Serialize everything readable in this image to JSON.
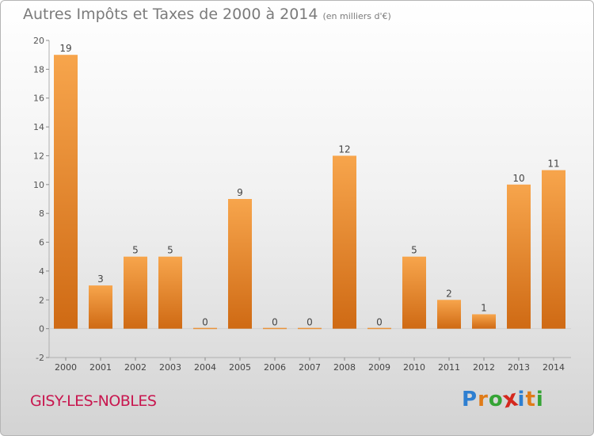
{
  "header": {
    "title": "Autres Impôts et Taxes de 2000 à 2014",
    "subtitle": "(en milliers d'€)"
  },
  "footer": {
    "commune": "GISY-LES-NOBLES",
    "brand": [
      "P",
      "r",
      "o",
      "x",
      "i",
      "t",
      "i"
    ],
    "brand_colors": [
      "#2e7fd1",
      "#e07b18",
      "#35a435",
      "#d4281e",
      "#2e7fd1",
      "#e07b18",
      "#35a435"
    ]
  },
  "chart_data": {
    "type": "bar",
    "title": "Autres Impôts et Taxes de 2000 à 2014",
    "subtitle": "(en milliers d'€)",
    "categories": [
      "2000",
      "2001",
      "2002",
      "2003",
      "2004",
      "2005",
      "2006",
      "2007",
      "2008",
      "2009",
      "2010",
      "2011",
      "2012",
      "2013",
      "2014"
    ],
    "values": [
      19,
      3,
      5,
      5,
      0,
      9,
      0,
      0,
      12,
      0,
      5,
      2,
      1,
      10,
      11
    ],
    "ylim": [
      -2,
      20
    ],
    "yticks": [
      -2,
      0,
      2,
      4,
      6,
      8,
      10,
      12,
      14,
      16,
      18,
      20
    ],
    "grid": false,
    "bar_color": "#f0922e"
  }
}
